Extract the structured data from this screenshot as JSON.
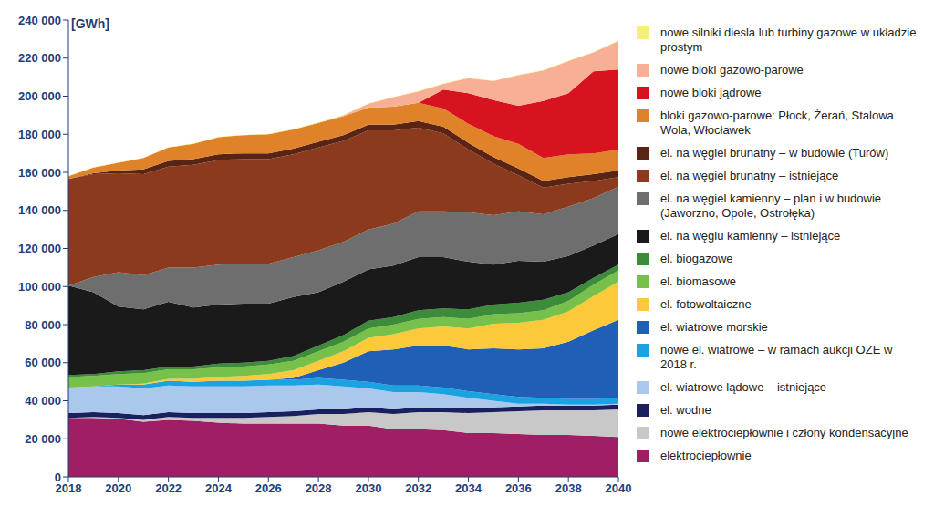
{
  "chart_data": {
    "type": "area",
    "stacked": true,
    "grid": false,
    "legend": "right",
    "y_label": "[GWh]",
    "x": [
      2018,
      2019,
      2020,
      2021,
      2022,
      2023,
      2024,
      2025,
      2026,
      2027,
      2028,
      2029,
      2030,
      2031,
      2032,
      2033,
      2034,
      2035,
      2036,
      2037,
      2038,
      2039,
      2040
    ],
    "xlim": [
      2018,
      2040
    ],
    "xticks": [
      2018,
      2020,
      2022,
      2024,
      2026,
      2028,
      2030,
      2032,
      2034,
      2036,
      2038,
      2040
    ],
    "ylim": [
      0,
      240000
    ],
    "yticks": [
      0,
      {
        "value": 20000,
        "label": "20 000"
      },
      {
        "value": 40000,
        "label": "40 000"
      },
      {
        "value": 60000,
        "label": "60 000"
      },
      {
        "value": 80000,
        "label": "80 000"
      },
      {
        "value": 100000,
        "label": "100 000"
      },
      {
        "value": 120000,
        "label": "120 000"
      },
      {
        "value": 140000,
        "label": "140 000"
      },
      {
        "value": 160000,
        "label": "160 000"
      },
      {
        "value": 180000,
        "label": "180 000"
      },
      {
        "value": 200000,
        "label": "200 000"
      },
      {
        "value": 220000,
        "label": "220 000"
      },
      {
        "value": 240000,
        "label": "240 000"
      }
    ],
    "series": [
      {
        "name": "elektrociepłownie",
        "color": "#9e1f63",
        "values": [
          31000,
          31000,
          30500,
          29000,
          30000,
          29500,
          28500,
          28000,
          28000,
          28000,
          28000,
          27000,
          27000,
          25000,
          25000,
          24500,
          23000,
          23000,
          22500,
          22000,
          22000,
          21500,
          21000
        ]
      },
      {
        "name": "nowe elektrociepłownie i człony kondensacyjne",
        "color": "#c8c8c8",
        "values": [
          0,
          500,
          500,
          1000,
          1500,
          1500,
          2500,
          3000,
          3500,
          4000,
          5000,
          6000,
          7000,
          8000,
          9000,
          9500,
          10500,
          11000,
          12000,
          13000,
          13000,
          13500,
          14500
        ]
      },
      {
        "name": "el. wodne",
        "color": "#1a1f5e",
        "values": [
          2500,
          2500,
          2500,
          2500,
          2500,
          2500,
          2500,
          2500,
          2500,
          2500,
          2500,
          2500,
          2500,
          2500,
          2500,
          2500,
          2500,
          2500,
          2500,
          2500,
          2500,
          2500,
          2500
        ]
      },
      {
        "name": "el. wiatrowe lądowe – istniejące",
        "color": "#a9c8ec",
        "values": [
          13500,
          13500,
          14000,
          14000,
          14000,
          14000,
          14000,
          14000,
          14000,
          13500,
          13000,
          12000,
          10000,
          9000,
          8000,
          7000,
          5500,
          3500,
          1500,
          1000,
          500,
          500,
          500
        ]
      },
      {
        "name": "nowe el. wiatrowe – w ramach aukcji OZE w 2018 r.",
        "color": "#1aa3e0",
        "values": [
          0,
          0,
          1000,
          2000,
          2500,
          2500,
          3000,
          3000,
          3000,
          3000,
          3500,
          3500,
          3500,
          3500,
          3500,
          3500,
          3500,
          3500,
          3500,
          3000,
          3000,
          3000,
          3000
        ]
      },
      {
        "name": "el. wiatrowe morskie",
        "color": "#1f5fb5",
        "values": [
          0,
          0,
          0,
          0,
          0,
          0,
          0,
          0,
          0,
          1000,
          4000,
          9000,
          16000,
          19000,
          21000,
          22000,
          22000,
          24000,
          25000,
          26000,
          30000,
          36000,
          41000
        ]
      },
      {
        "name": "el. fotowoltaiczne",
        "color": "#fcc93a",
        "values": [
          0,
          0,
          0,
          500,
          1000,
          1500,
          2000,
          2500,
          3000,
          4000,
          5000,
          6000,
          7000,
          8000,
          9000,
          10000,
          11000,
          13000,
          14000,
          15000,
          16000,
          18000,
          20000
        ]
      },
      {
        "name": "el. biomasowe",
        "color": "#77c14a",
        "values": [
          5500,
          5500,
          5500,
          5500,
          5000,
          5000,
          5000,
          5000,
          5000,
          5000,
          5000,
          5000,
          5000,
          5000,
          5000,
          5000,
          5000,
          5000,
          5000,
          5000,
          5500,
          6000,
          6000
        ]
      },
      {
        "name": "el. biogazowe",
        "color": "#3d8c3a",
        "values": [
          1000,
          1000,
          1500,
          1500,
          1500,
          1500,
          2000,
          2000,
          2000,
          2500,
          3000,
          3500,
          4000,
          4000,
          4500,
          4500,
          5000,
          5000,
          5500,
          5500,
          4500,
          3500,
          3000
        ]
      },
      {
        "name": "el. na węglu kamienny – istniejące",
        "color": "#1a1a1a",
        "values": [
          47000,
          43000,
          34000,
          32000,
          34000,
          31000,
          31000,
          31000,
          30000,
          31000,
          28000,
          28000,
          27000,
          27000,
          28000,
          27000,
          25000,
          21000,
          22000,
          20000,
          19000,
          17000,
          16000
        ]
      },
      {
        "name": "el. na węgiel kamienny – plan i w budowie (Jaworzno, Opole, Ostrołęka)",
        "color": "#6e6e6e",
        "values": [
          0,
          8000,
          18000,
          18000,
          18000,
          21000,
          21000,
          21000,
          21000,
          21000,
          22000,
          21000,
          21000,
          22000,
          24000,
          24000,
          26000,
          26000,
          26000,
          25000,
          26000,
          25000,
          25000
        ]
      },
      {
        "name": "el. na węgiel brunatny – istniejące",
        "color": "#8b3a1e",
        "values": [
          56000,
          54000,
          52000,
          53000,
          53000,
          54000,
          55000,
          55000,
          55000,
          54000,
          54000,
          53000,
          52000,
          49000,
          44000,
          41000,
          33000,
          27000,
          19000,
          14000,
          12000,
          9000,
          5000
        ]
      },
      {
        "name": "el. na węgiel brunatny – w budowie (Turów)",
        "color": "#5a2414",
        "values": [
          0,
          500,
          1500,
          2500,
          3000,
          3000,
          3000,
          3000,
          3000,
          3000,
          3000,
          3000,
          3000,
          3000,
          3500,
          3500,
          3500,
          3500,
          3500,
          3500,
          3500,
          3500,
          3500
        ]
      },
      {
        "name": "bloki gazowo-parowe: Płock, Żerań, Stalowa Wola, Włocławek",
        "color": "#e0822a",
        "values": [
          1500,
          3000,
          4000,
          6000,
          7000,
          8000,
          9000,
          9500,
          10000,
          10000,
          10000,
          10000,
          9000,
          9500,
          9500,
          9500,
          10000,
          11000,
          13000,
          12000,
          12000,
          11000,
          11000
        ]
      },
      {
        "name": "nowe bloki jądrowe",
        "color": "#d7131f",
        "values": [
          0,
          0,
          0,
          0,
          0,
          0,
          0,
          0,
          0,
          0,
          0,
          0,
          0,
          0,
          0,
          10000,
          16000,
          19000,
          20000,
          30000,
          32000,
          43000,
          42000
        ]
      },
      {
        "name": "nowe bloki gazowo-parowe",
        "color": "#f7b096",
        "values": [
          0,
          0,
          0,
          0,
          0,
          0,
          0,
          0,
          0,
          0,
          0,
          500,
          2000,
          5000,
          6000,
          3000,
          8000,
          10000,
          16000,
          16000,
          17000,
          10000,
          15000
        ]
      },
      {
        "name": "nowe silniki diesla lub turbiny gazowe w układzie prostym",
        "color": "#f5f07a",
        "values": [
          200,
          200,
          200,
          200,
          200,
          200,
          200,
          200,
          200,
          200,
          200,
          200,
          200,
          200,
          200,
          200,
          200,
          200,
          200,
          200,
          200,
          200,
          200
        ]
      }
    ]
  }
}
